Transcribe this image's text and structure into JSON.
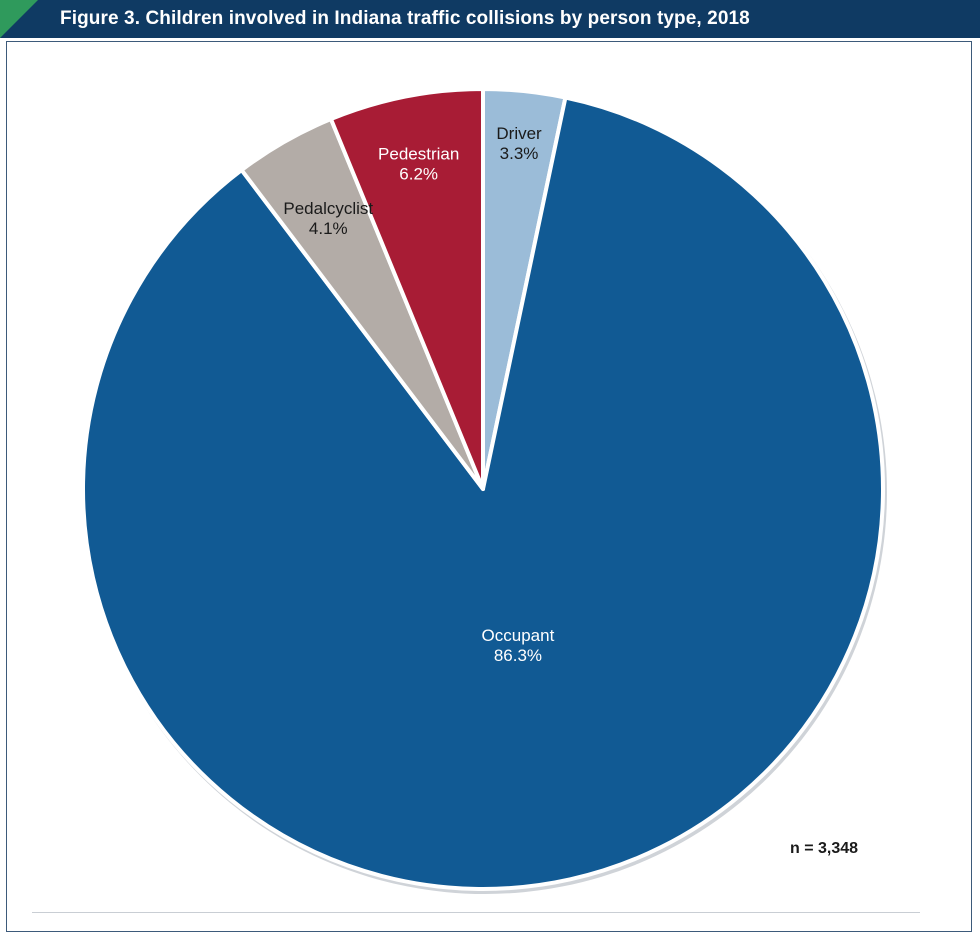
{
  "header": {
    "title": "Figure 3. Children involved in Indiana traffic collisions by person type, 2018",
    "accent_color": "#2f9a5c",
    "bar_color": "#0f3a63"
  },
  "chart_data": {
    "type": "pie",
    "title": "Figure 3. Children involved in Indiana traffic collisions by person type, 2018",
    "slices": [
      {
        "label": "Driver",
        "value": 3.3,
        "display": "3.3%",
        "color": "#9bbcd8",
        "text_color": "#1a1a1a"
      },
      {
        "label": "Occupant",
        "value": 86.3,
        "display": "86.3%",
        "color": "#115a94",
        "text_color": "#ffffff"
      },
      {
        "label": "Pedalcyclist",
        "value": 4.1,
        "display": "4.1%",
        "color": "#b3aca7",
        "text_color": "#1a1a1a"
      },
      {
        "label": "Pedestrian",
        "value": 6.2,
        "display": "6.2%",
        "color": "#a81c35",
        "text_color": "#ffffff"
      }
    ],
    "start": "12 o'clock",
    "direction": "clockwise",
    "note": "n = 3,348"
  }
}
